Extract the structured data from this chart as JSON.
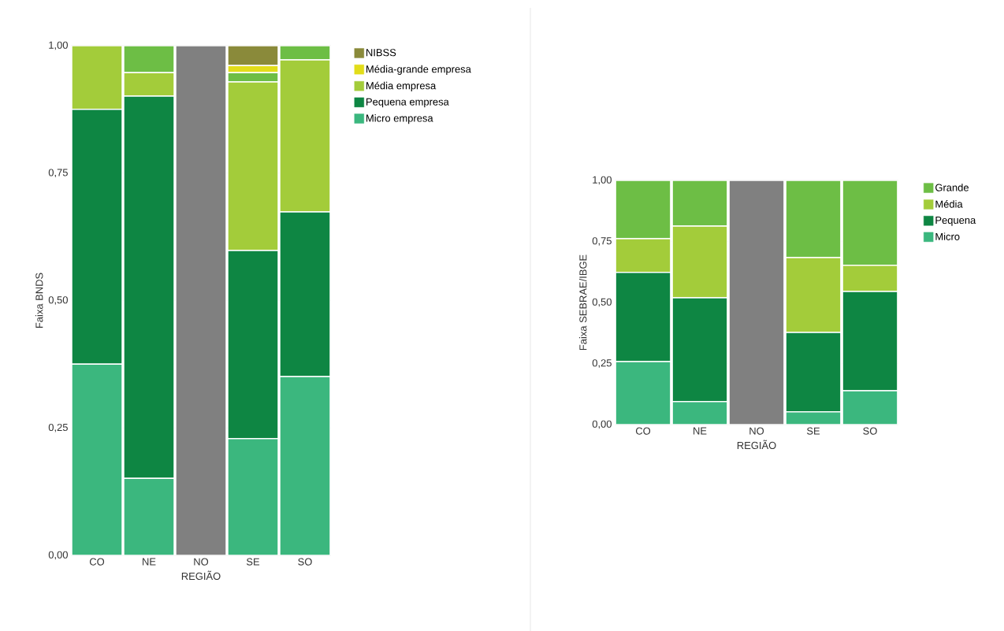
{
  "chart_data": [
    {
      "type": "bar",
      "stacked": true,
      "ylabel": "Faixa BNDS",
      "xlabel": "REGIÃO",
      "categories": [
        "CO",
        "NE",
        "NO",
        "SE",
        "SO"
      ],
      "ylim": [
        0,
        1
      ],
      "yticks": [
        {
          "value": 0,
          "label": "0,00"
        },
        {
          "value": 0.25,
          "label": "0,25"
        },
        {
          "value": 0.5,
          "label": "0,50"
        },
        {
          "value": 0.75,
          "label": "0,75"
        },
        {
          "value": 1,
          "label": "1,00"
        }
      ],
      "grid": "y",
      "legend": "right",
      "series": [
        {
          "name": "Micro empresa",
          "color": "#3bb77e",
          "values": [
            0.375,
            0.151,
            0,
            0.229,
            0.351
          ]
        },
        {
          "name": "Pequena empresa",
          "color": "#0e8643",
          "values": [
            0.5,
            0.75,
            0,
            0.369,
            0.323
          ]
        },
        {
          "name": "Média empresa",
          "color": "#a3cc3a",
          "values": [
            0.125,
            0.046,
            0,
            0.331,
            0.298
          ]
        },
        {
          "color": "#6dbe45",
          "values": [
            0,
            0.053,
            0,
            0.018,
            0.028
          ]
        },
        {
          "name": "Média-grande empresa",
          "color": "#e2dd1a",
          "values": [
            0,
            0,
            0,
            0.014,
            0
          ]
        },
        {
          "name": "NIBSS",
          "color": "#8a8a3a",
          "values": [
            0,
            0,
            0,
            0.039,
            0
          ]
        },
        {
          "color": "#808080",
          "values": [
            0,
            0,
            1,
            0,
            0
          ]
        }
      ]
    },
    {
      "type": "bar",
      "stacked": true,
      "ylabel": "Faixa SEBRAE/IBGE",
      "xlabel": "REGIÃO",
      "categories": [
        "CO",
        "NE",
        "NO",
        "SE",
        "SO"
      ],
      "ylim": [
        0,
        1
      ],
      "yticks": [
        {
          "value": 0,
          "label": "0,00"
        },
        {
          "value": 0.25,
          "label": "0,25"
        },
        {
          "value": 0.5,
          "label": "0,50"
        },
        {
          "value": 0.75,
          "label": "0,75"
        },
        {
          "value": 1,
          "label": "1,00"
        }
      ],
      "grid": "y",
      "legend": "right",
      "series": [
        {
          "name": "Micro",
          "color": "#3bb77e",
          "values": [
            0.258,
            0.094,
            0,
            0.052,
            0.139
          ]
        },
        {
          "name": "Pequena",
          "color": "#0e8643",
          "values": [
            0.365,
            0.425,
            0,
            0.325,
            0.406
          ]
        },
        {
          "name": "Média",
          "color": "#a3cc3a",
          "values": [
            0.138,
            0.294,
            0,
            0.307,
            0.107
          ]
        },
        {
          "name": "Grande",
          "color": "#6dbe45",
          "values": [
            0.239,
            0.187,
            0,
            0.316,
            0.348
          ]
        },
        {
          "color": "#808080",
          "values": [
            0,
            0,
            1,
            0,
            0
          ]
        }
      ]
    }
  ]
}
